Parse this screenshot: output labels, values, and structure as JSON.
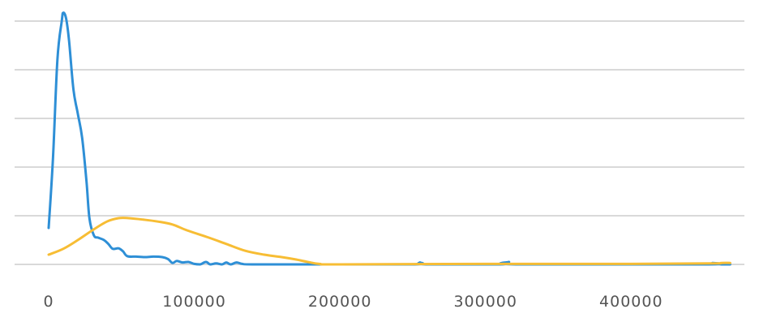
{
  "chart_data": {
    "type": "line",
    "title": "",
    "xlabel": "",
    "ylabel": "",
    "xlim": [
      0,
      470000
    ],
    "ylim": [
      0,
      5.2
    ],
    "y_gridlines": [
      0,
      1,
      2,
      3,
      4,
      5
    ],
    "y_tick_labels_visible": false,
    "x_ticks": [
      {
        "value": 0,
        "label": "0"
      },
      {
        "value": 100000,
        "label": "100000"
      },
      {
        "value": 200000,
        "label": "200000"
      },
      {
        "value": 300000,
        "label": "300000"
      },
      {
        "value": 400000,
        "label": "400000"
      }
    ],
    "grid": "horizontal",
    "legend": "none",
    "series": [
      {
        "color": "#2e8fd6",
        "points": [
          [
            0,
            0.75
          ],
          [
            3000,
            2.2
          ],
          [
            6000,
            4.2
          ],
          [
            9000,
            5.0
          ],
          [
            10000,
            5.17
          ],
          [
            12000,
            5.05
          ],
          [
            14000,
            4.6
          ],
          [
            17000,
            3.6
          ],
          [
            20000,
            3.1
          ],
          [
            23000,
            2.6
          ],
          [
            26000,
            1.7
          ],
          [
            28000,
            0.95
          ],
          [
            31000,
            0.6
          ],
          [
            34000,
            0.55
          ],
          [
            38000,
            0.5
          ],
          [
            41000,
            0.42
          ],
          [
            44000,
            0.32
          ],
          [
            48000,
            0.33
          ],
          [
            51000,
            0.27
          ],
          [
            54000,
            0.17
          ],
          [
            60000,
            0.16
          ],
          [
            66000,
            0.15
          ],
          [
            72000,
            0.16
          ],
          [
            78000,
            0.15
          ],
          [
            82000,
            0.11
          ],
          [
            85000,
            0.03
          ],
          [
            88000,
            0.07
          ],
          [
            92000,
            0.04
          ],
          [
            96000,
            0.05
          ],
          [
            100000,
            0.01
          ],
          [
            104000,
            0.0
          ],
          [
            108000,
            0.05
          ],
          [
            111000,
            0.0
          ],
          [
            115000,
            0.02
          ],
          [
            119000,
            0.0
          ],
          [
            122000,
            0.04
          ],
          [
            125000,
            0.0
          ],
          [
            129000,
            0.04
          ],
          [
            133000,
            0.01
          ],
          [
            140000,
            0.0
          ],
          [
            180000,
            0.0
          ],
          [
            250000,
            0.0
          ],
          [
            255000,
            0.04
          ],
          [
            259000,
            0.0
          ],
          [
            310000,
            0.0
          ],
          [
            316000,
            0.05
          ],
          [
            322000,
            0.0
          ],
          [
            450000,
            0.0
          ],
          [
            456000,
            0.03
          ],
          [
            462000,
            0.0
          ],
          [
            468000,
            0.0
          ]
        ]
      },
      {
        "color": "#f7bd34",
        "points": [
          [
            0,
            0.2
          ],
          [
            10000,
            0.32
          ],
          [
            20000,
            0.5
          ],
          [
            30000,
            0.7
          ],
          [
            40000,
            0.88
          ],
          [
            48000,
            0.95
          ],
          [
            55000,
            0.95
          ],
          [
            65000,
            0.92
          ],
          [
            75000,
            0.88
          ],
          [
            85000,
            0.82
          ],
          [
            95000,
            0.7
          ],
          [
            110000,
            0.55
          ],
          [
            122000,
            0.42
          ],
          [
            135000,
            0.28
          ],
          [
            148000,
            0.2
          ],
          [
            160000,
            0.15
          ],
          [
            170000,
            0.1
          ],
          [
            178000,
            0.05
          ],
          [
            186000,
            0.01
          ],
          [
            200000,
            0.0
          ],
          [
            300000,
            0.01
          ],
          [
            400000,
            0.01
          ],
          [
            455000,
            0.02
          ],
          [
            462000,
            0.03
          ],
          [
            468000,
            0.03
          ]
        ]
      }
    ]
  }
}
